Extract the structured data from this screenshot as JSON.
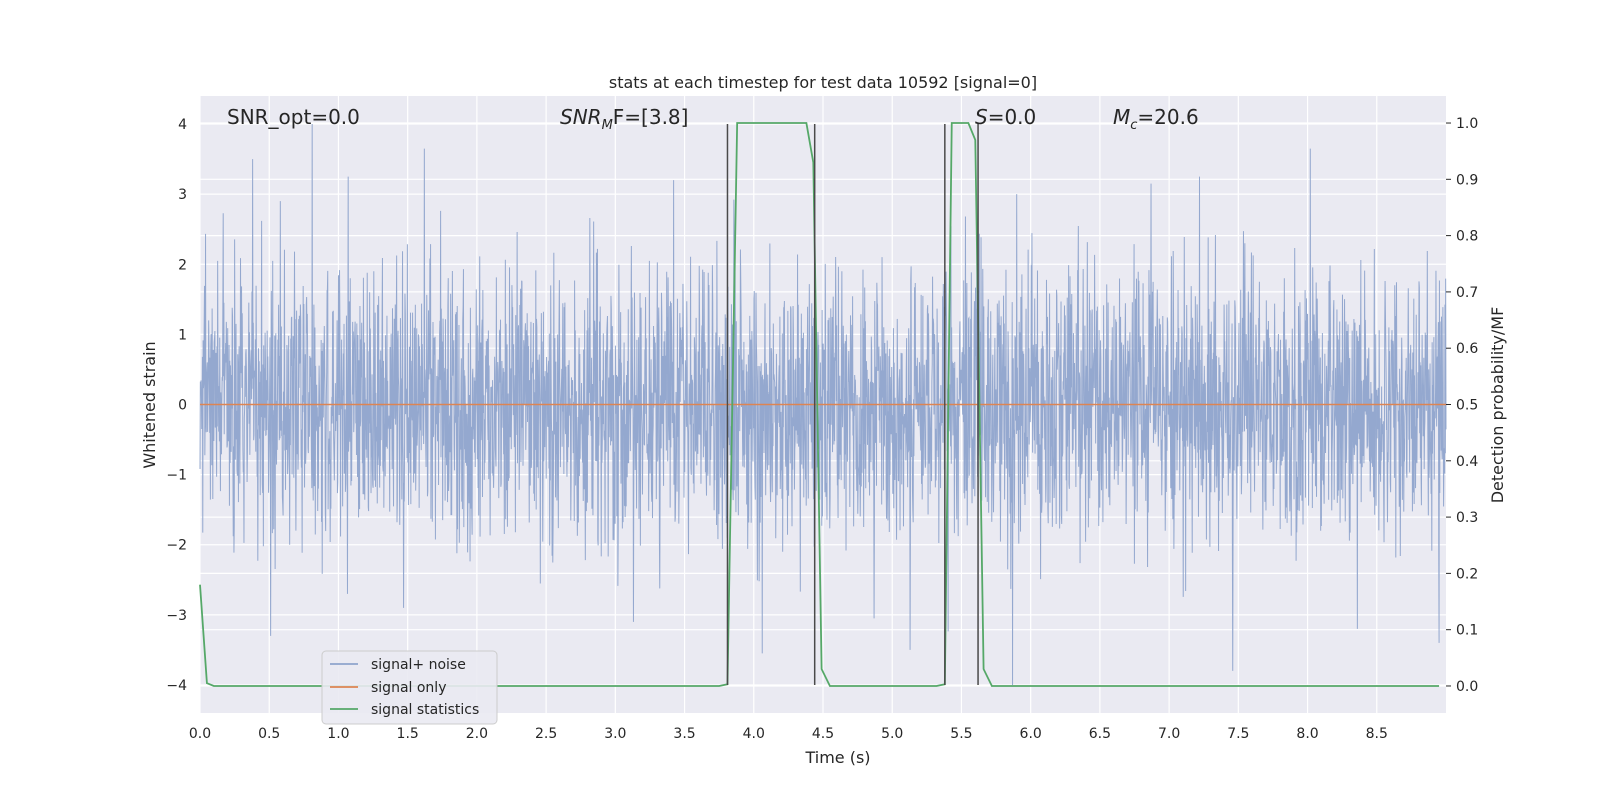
{
  "chart_data": {
    "type": "line",
    "title": "stats at each timestep for test data 10592 [signal=0]",
    "xlabel": "Time (s)",
    "ylabel": "Whitened strain",
    "ylabel_right": "Detection probability/MF",
    "xlim": [
      0.0,
      9.0
    ],
    "ylim": [
      -4.4,
      4.4
    ],
    "ylim_right": [
      -0.048,
      1.048
    ],
    "x_ticks": [
      0.0,
      0.5,
      1.0,
      1.5,
      2.0,
      2.5,
      3.0,
      3.5,
      4.0,
      4.5,
      5.0,
      5.5,
      6.0,
      6.5,
      7.0,
      7.5,
      8.0,
      8.5
    ],
    "x_tick_labels": [
      "0.0",
      "0.5",
      "1.0",
      "1.5",
      "2.0",
      "2.5",
      "3.0",
      "3.5",
      "4.0",
      "4.5",
      "5.0",
      "5.5",
      "6.0",
      "6.5",
      "7.0",
      "7.5",
      "8.0",
      "8.5"
    ],
    "y_ticks": [
      -4,
      -3,
      -2,
      -1,
      0,
      1,
      2,
      3,
      4
    ],
    "y_tick_labels": [
      "−4",
      "−3",
      "−2",
      "−1",
      "0",
      "1",
      "2",
      "3",
      "4"
    ],
    "y_ticks_right": [
      0.0,
      0.1,
      0.2,
      0.3,
      0.4,
      0.5,
      0.6,
      0.7,
      0.8,
      0.9,
      1.0
    ],
    "y_tick_labels_right": [
      "0.0",
      "0.1",
      "0.2",
      "0.3",
      "0.4",
      "0.5",
      "0.6",
      "0.7",
      "0.8",
      "0.9",
      "1.0"
    ],
    "grid": true,
    "legend_placement": "lower-left",
    "annotations": {
      "snr_opt": "SNR_opt=0.0",
      "snr_mf_main": "SNR",
      "snr_mf_sub": "M",
      "snr_mf_rest": "F=[3.8]",
      "s_italic": "S",
      "s_rest": "=0.0",
      "mc_main": "M",
      "mc_sub": "c",
      "mc_rest": "=20.6"
    },
    "colors": {
      "noise": "#8fa4cc",
      "signal_only": "#dd8452",
      "statistics": "#55a868",
      "vlines": "#4a4a4a",
      "background": "#eaeaf2"
    },
    "series": [
      {
        "name": "signal+ noise",
        "axis": "left",
        "style": "dense noise, approx. Gaussian, envelope about ±2.5 with occasional spikes",
        "spikes": [
          {
            "x": 0.38,
            "y": 3.5
          },
          {
            "x": 0.58,
            "y": 2.9
          },
          {
            "x": 0.81,
            "y": 4.0
          },
          {
            "x": 1.07,
            "y": 3.25
          },
          {
            "x": 1.62,
            "y": 3.65
          },
          {
            "x": 3.42,
            "y": 3.2
          },
          {
            "x": 8.02,
            "y": 3.65
          },
          {
            "x": 5.9,
            "y": 3.0
          },
          {
            "x": 6.87,
            "y": 3.15
          },
          {
            "x": 7.22,
            "y": 3.25
          },
          {
            "x": 0.51,
            "y": -3.3
          },
          {
            "x": 1.47,
            "y": -2.9
          },
          {
            "x": 3.13,
            "y": -3.1
          },
          {
            "x": 4.06,
            "y": -3.55
          },
          {
            "x": 4.87,
            "y": -3.05
          },
          {
            "x": 5.13,
            "y": -3.5
          },
          {
            "x": 5.87,
            "y": -4.0
          },
          {
            "x": 7.46,
            "y": -3.8
          },
          {
            "x": 8.36,
            "y": -3.2
          },
          {
            "x": 8.95,
            "y": -3.4
          }
        ]
      },
      {
        "name": "signal only",
        "axis": "left",
        "x": [
          0.0,
          9.0
        ],
        "y": [
          0.0,
          0.0
        ]
      },
      {
        "name": "signal statistics",
        "axis": "right",
        "x": [
          0.0,
          0.05,
          0.1,
          0.15,
          3.75,
          3.81,
          3.88,
          3.94,
          4.38,
          4.43,
          4.49,
          4.55,
          4.61,
          5.32,
          5.38,
          5.43,
          5.49,
          5.55,
          5.6,
          5.66,
          5.72,
          8.95
        ],
        "y": [
          0.18,
          0.005,
          0.0,
          0.0,
          0.0,
          0.003,
          1.0,
          1.0,
          1.0,
          0.93,
          0.03,
          0.0,
          0.0,
          0.0,
          0.003,
          1.0,
          1.0,
          1.0,
          0.97,
          0.03,
          0.0,
          0.0
        ]
      }
    ],
    "vertical_lines_x": [
      3.81,
      4.44,
      5.38,
      5.62
    ],
    "vertical_lines_range": [
      -4.0,
      4.0
    ]
  }
}
